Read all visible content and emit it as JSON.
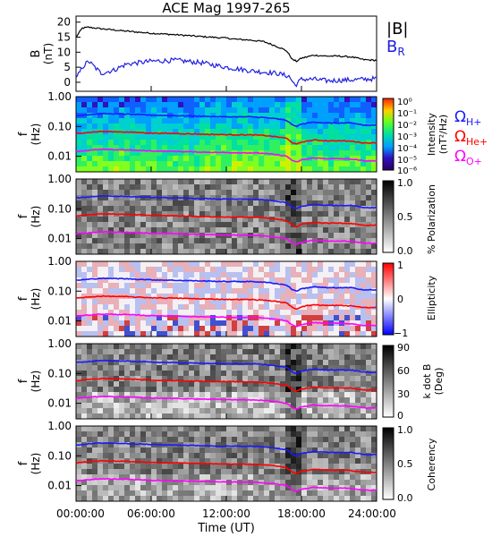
{
  "title": "ACE Mag 1997-265",
  "x_axis": {
    "label": "Time (UT)",
    "ticks": [
      "00:00:00",
      "06:00:00",
      "12:00:00",
      "18:00:00",
      "24:00:00"
    ],
    "tick_hours": [
      0,
      6,
      12,
      18,
      24
    ],
    "range_hours": [
      0,
      24
    ]
  },
  "colors": {
    "B_total": "#000000",
    "B_R": "#2020e0",
    "H_plus": "#1a1aff",
    "He_plus": "#ff0000",
    "O_plus": "#ff00ff"
  },
  "legend": {
    "b_total": "|B|",
    "b_r_main": "B",
    "b_r_sub": "R",
    "omega": "Ω",
    "h_sub": "H+",
    "he_sub": "He+",
    "o_sub": "O+"
  },
  "panels": {
    "b": {
      "ylabel_main": "B",
      "ylabel_sub": "(nT)",
      "ticks": [
        "0",
        "5",
        "10",
        "15",
        "20"
      ]
    },
    "freq_ylabel_main": "f",
    "freq_ylabel_sub": "(Hz)",
    "freq_ticks": [
      "1.00",
      "0.10",
      "0.01"
    ],
    "intensity": {
      "cbar_label_1": "Intensity",
      "cbar_label_2": "(nT²/Hz)",
      "cbar_ticks": [
        "10⁰",
        "10⁻¹",
        "10⁻²",
        "10⁻³",
        "10⁻⁴",
        "10⁻⁵",
        "10⁻⁶"
      ]
    },
    "polarization": {
      "cbar_label": "% Polarization",
      "cbar_ticks": [
        "1.0",
        "0.5",
        "0.0"
      ]
    },
    "ellipticity": {
      "cbar_label": "Ellipticity",
      "cbar_ticks": [
        "1",
        "0",
        "−1"
      ]
    },
    "kdotb": {
      "cbar_label_1": "k dot B",
      "cbar_label_2": "(Deg)",
      "cbar_ticks": [
        "90",
        "60",
        "30",
        "0"
      ]
    },
    "coherency": {
      "cbar_label": "Coherency",
      "cbar_ticks": [
        "1.0",
        "0.5",
        "0.0"
      ]
    }
  },
  "chart_data": {
    "type": "line",
    "title": "ACE Mag 1997-265",
    "xlabel": "Time (UT)",
    "xlim_hours": [
      0,
      24
    ],
    "b_field": {
      "ylabel": "B (nT)",
      "ylim": [
        -3,
        22
      ],
      "series": [
        {
          "name": "|B|",
          "x": [
            0,
            0.5,
            1,
            2,
            4,
            6,
            8,
            10,
            12,
            12.8,
            14,
            15,
            16,
            16.8,
            17.3,
            17.6,
            18,
            19,
            20,
            21,
            22,
            23,
            24
          ],
          "y": [
            15,
            18,
            18.3,
            17.8,
            17,
            16.3,
            15.8,
            15.2,
            14.7,
            14.3,
            14,
            13.5,
            12,
            10.5,
            7.5,
            7,
            8,
            9,
            8.7,
            8.7,
            8.4,
            7.5,
            7.3
          ]
        },
        {
          "name": "B_R",
          "x": [
            0,
            0.5,
            1,
            1.5,
            2,
            3,
            4,
            6,
            8,
            10,
            12,
            14,
            16,
            17,
            17.5,
            18,
            19,
            20,
            22,
            24
          ],
          "y": [
            1,
            5,
            7,
            5,
            3,
            4,
            6,
            7,
            7.3,
            6.5,
            5,
            3.8,
            3,
            2,
            -1,
            1,
            1,
            0.5,
            0.8,
            1.2
          ]
        }
      ]
    },
    "gyrofrequencies_hz": {
      "x": [
        0,
        2,
        4,
        6,
        8,
        10,
        12,
        14,
        15,
        16,
        16.8,
        17.3,
        17.6,
        18,
        19,
        20,
        21,
        22,
        23,
        24
      ],
      "series": [
        {
          "name": "H+",
          "values": [
            0.23,
            0.27,
            0.26,
            0.24,
            0.23,
            0.22,
            0.21,
            0.21,
            0.2,
            0.18,
            0.16,
            0.11,
            0.1,
            0.12,
            0.14,
            0.13,
            0.13,
            0.13,
            0.11,
            0.11
          ]
        },
        {
          "name": "He+",
          "values": [
            0.058,
            0.068,
            0.065,
            0.06,
            0.058,
            0.055,
            0.053,
            0.052,
            0.05,
            0.045,
            0.04,
            0.028,
            0.025,
            0.03,
            0.035,
            0.033,
            0.033,
            0.032,
            0.028,
            0.028
          ]
        },
        {
          "name": "O+",
          "values": [
            0.0145,
            0.017,
            0.0163,
            0.015,
            0.0145,
            0.0138,
            0.0133,
            0.013,
            0.0125,
            0.0113,
            0.01,
            0.007,
            0.0063,
            0.0075,
            0.0088,
            0.0083,
            0.0083,
            0.008,
            0.007,
            0.007
          ]
        }
      ]
    },
    "spectrograms": [
      {
        "name": "Intensity",
        "ylim_hz": [
          0.003,
          1.0
        ],
        "cbar_range": [
          -6,
          0
        ],
        "cbar_scale": "log"
      },
      {
        "name": "% Polarization",
        "ylim_hz": [
          0.003,
          1.0
        ],
        "cbar_range": [
          0,
          1
        ]
      },
      {
        "name": "Ellipticity",
        "ylim_hz": [
          0.003,
          1.0
        ],
        "cbar_range": [
          -1,
          1
        ]
      },
      {
        "name": "k dot B",
        "ylim_hz": [
          0.003,
          1.0
        ],
        "cbar_range": [
          0,
          90
        ]
      },
      {
        "name": "Coherency",
        "ylim_hz": [
          0.003,
          1.0
        ],
        "cbar_range": [
          0,
          1
        ]
      }
    ]
  }
}
